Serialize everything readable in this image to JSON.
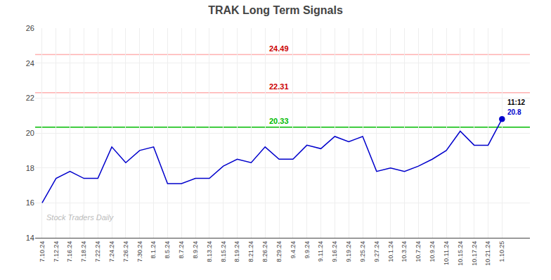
{
  "chart_data": {
    "type": "line",
    "title": "TRAK Long Term Signals",
    "categories": [
      "7.10.24",
      "7.12.24",
      "7.16.24",
      "7.18.24",
      "7.22.24",
      "7.24.24",
      "7.26.24",
      "7.30.24",
      "8.1.24",
      "8.5.24",
      "8.7.24",
      "8.9.24",
      "8.13.24",
      "8.15.24",
      "8.19.24",
      "8.21.24",
      "8.26.24",
      "8.29.24",
      "9.4.24",
      "9.9.24",
      "9.11.24",
      "9.16.24",
      "9.19.24",
      "9.25.24",
      "9.27.24",
      "10.1.24",
      "10.3.24",
      "10.7.24",
      "10.9.24",
      "10.11.24",
      "10.15.24",
      "10.17.24",
      "10.21.24",
      "1.10.25"
    ],
    "values": [
      16.0,
      17.4,
      17.8,
      17.4,
      17.4,
      19.2,
      18.3,
      19.0,
      19.2,
      17.1,
      17.1,
      17.4,
      17.4,
      18.1,
      18.5,
      18.3,
      19.2,
      18.5,
      18.5,
      19.3,
      19.1,
      19.8,
      19.5,
      19.8,
      17.8,
      18.0,
      17.8,
      18.1,
      18.5,
      19.0,
      20.1,
      19.3,
      19.3,
      20.8
    ],
    "color": "#0000cc",
    "ylim": [
      14,
      26
    ],
    "yticks": [
      14,
      16,
      18,
      20,
      22,
      24,
      26
    ],
    "grid": true,
    "hlines": [
      {
        "value": 20.33,
        "color": "#00bb00",
        "label_color": "#00bb00",
        "x": "8.29.24"
      },
      {
        "value": 22.31,
        "color": "#ffb0b0",
        "label_color": "#cc0000",
        "x": "8.29.24"
      },
      {
        "value": 24.49,
        "color": "#ffb0b0",
        "label_color": "#cc0000",
        "x": "8.29.24"
      }
    ],
    "annotations": [
      {
        "text": "11:12",
        "x": "1.10.25",
        "y": 20.8,
        "color": "#000000"
      },
      {
        "text": "20.8",
        "x": "1.10.25",
        "y": 20.8,
        "color": "#0000cc"
      }
    ],
    "watermark": {
      "text": "Stock Traders Daily",
      "color": "#bbbbbb"
    }
  }
}
